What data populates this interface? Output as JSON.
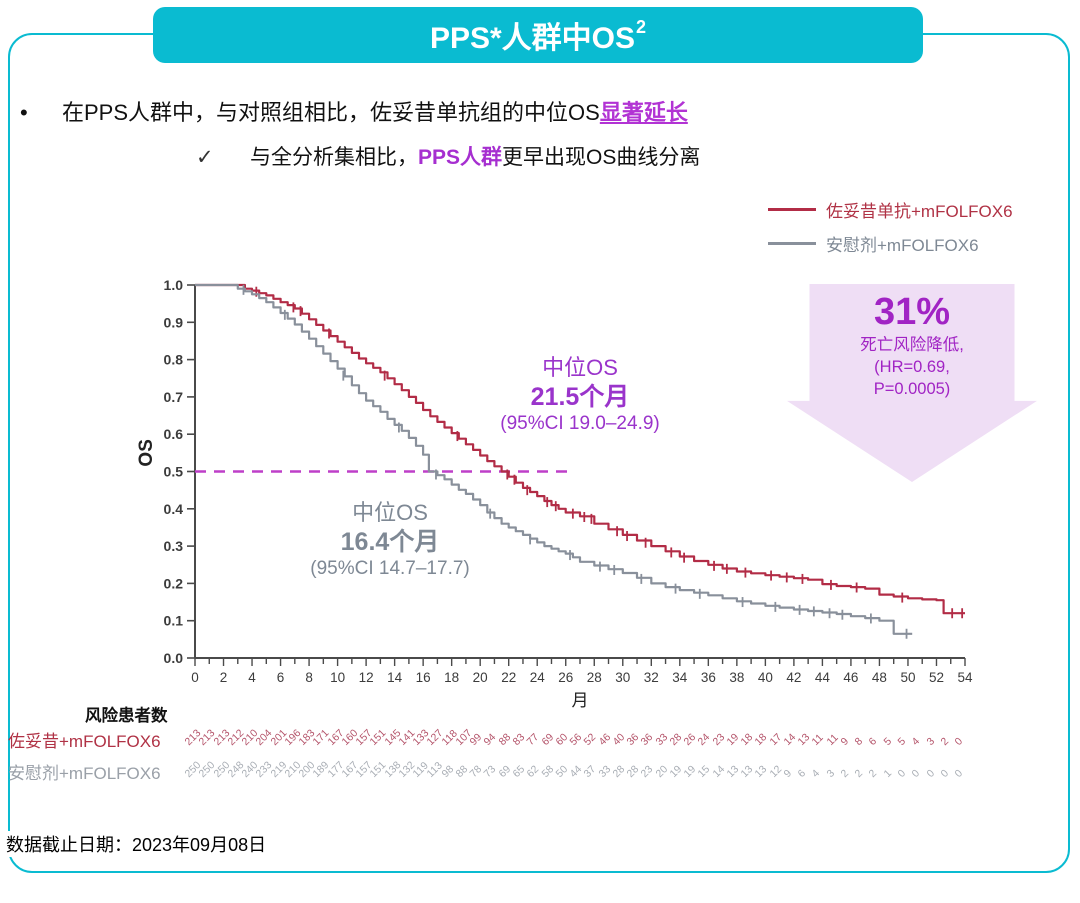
{
  "title": {
    "text": "PPS*人群中OS",
    "superscript": "2"
  },
  "bullets": {
    "line1_bullet": "•",
    "line1_prefix": "在PPS人群中，与对照组相比，佐妥昔单抗组的中位OS",
    "line1_highlight": "显著延长",
    "line2_check": "✓",
    "line2_prefix": "与全分析集相比，",
    "line2_highlight": "PPS人群",
    "line2_suffix": "更早出现OS曲线分离"
  },
  "legend": [
    {
      "label": "佐妥昔单抗+mFOLFOX6",
      "color": "#B22C46"
    },
    {
      "label": "安慰剂+mFOLFOX6",
      "color": "#89909B"
    }
  ],
  "annotations": {
    "zol": {
      "line1": "中位OS",
      "line2": "21.5个月",
      "line3": "(95%CI 19.0–24.9)",
      "color": "#9A34CB"
    },
    "pbo": {
      "line1": "中位OS",
      "line2": "16.4个月",
      "line3": "(95%CI 14.7–17.7)",
      "color": "#7E8894"
    }
  },
  "arrow": {
    "percent": "31%",
    "line1": "死亡风险降低,",
    "line2": "(HR=0.69,",
    "line3": "P=0.0005)",
    "fill": "#EFDEF5",
    "text_color": "#A124C4"
  },
  "footer": "数据截止日期：2023年09月08日",
  "colors": {
    "teal": "#0ABBD1",
    "curve_red": "#B22C46",
    "curve_gray": "#89909B",
    "magenta_highlight": "#B233D4",
    "purple_annotation": "#9A34CB",
    "dashed_median": "#BE3FC8",
    "risk_numbers_red": "#B5566C",
    "risk_numbers_gray": "#A9AEB5"
  },
  "chart_data": {
    "type": "line",
    "subtype": "kaplan-meier",
    "title": "",
    "xlabel": "月",
    "ylabel": "OS",
    "xlim": [
      0,
      54
    ],
    "ylim": [
      0,
      1
    ],
    "x_tick_step": 2,
    "x_minor_step": 1,
    "x_ticks": [
      0,
      2,
      4,
      6,
      8,
      10,
      12,
      14,
      16,
      18,
      20,
      22,
      24,
      26,
      28,
      30,
      32,
      34,
      36,
      38,
      40,
      42,
      44,
      46,
      48,
      50,
      52,
      54
    ],
    "y_ticks": [
      "1.0",
      "0.9",
      "0.8",
      "0.7",
      "0.6",
      "0.5",
      "0.4",
      "0.3",
      "0.2",
      "0.1",
      "0.0"
    ],
    "median_line": {
      "y": 0.5,
      "x_start": 0,
      "x_end": 26.2,
      "color": "#BE3FC8"
    },
    "hr": "0.69",
    "p_value": "0.0005",
    "risk_reduction_percent": 31,
    "series": [
      {
        "name": "佐妥昔单抗+mFOLFOX6",
        "color": "#B22C46",
        "median_months": 21.5,
        "ci95": "19.0–24.9",
        "points": [
          [
            0,
            1
          ],
          [
            3,
            1
          ],
          [
            3.5,
            0.99
          ],
          [
            4,
            0.985
          ],
          [
            4.5,
            0.978
          ],
          [
            5,
            0.972
          ],
          [
            5.5,
            0.963
          ],
          [
            6,
            0.954
          ],
          [
            6.5,
            0.946
          ],
          [
            7,
            0.937
          ],
          [
            7.5,
            0.923
          ],
          [
            8,
            0.908
          ],
          [
            8.5,
            0.893
          ],
          [
            9,
            0.878
          ],
          [
            9.5,
            0.863
          ],
          [
            10,
            0.848
          ],
          [
            10.5,
            0.833
          ],
          [
            11,
            0.818
          ],
          [
            11.5,
            0.803
          ],
          [
            12,
            0.79
          ],
          [
            12.5,
            0.778
          ],
          [
            13,
            0.766
          ],
          [
            13.5,
            0.75
          ],
          [
            14,
            0.734
          ],
          [
            14.5,
            0.718
          ],
          [
            15,
            0.7
          ],
          [
            15.5,
            0.684
          ],
          [
            16,
            0.665
          ],
          [
            16.5,
            0.648
          ],
          [
            17,
            0.633
          ],
          [
            17.5,
            0.618
          ],
          [
            18,
            0.603
          ],
          [
            18.5,
            0.588
          ],
          [
            19,
            0.573
          ],
          [
            19.5,
            0.558
          ],
          [
            20,
            0.543
          ],
          [
            20.5,
            0.528
          ],
          [
            21,
            0.514
          ],
          [
            21.5,
            0.5
          ],
          [
            22,
            0.486
          ],
          [
            22.5,
            0.47
          ],
          [
            23,
            0.456
          ],
          [
            23.5,
            0.445
          ],
          [
            24,
            0.434
          ],
          [
            24.5,
            0.421
          ],
          [
            25,
            0.41
          ],
          [
            25.5,
            0.4
          ],
          [
            26,
            0.39
          ],
          [
            27,
            0.38
          ],
          [
            28,
            0.36
          ],
          [
            29,
            0.345
          ],
          [
            30,
            0.33
          ],
          [
            31,
            0.315
          ],
          [
            32,
            0.3
          ],
          [
            33,
            0.286
          ],
          [
            34,
            0.272
          ],
          [
            35,
            0.26
          ],
          [
            36,
            0.25
          ],
          [
            37,
            0.24
          ],
          [
            38,
            0.232
          ],
          [
            39,
            0.227
          ],
          [
            40,
            0.222
          ],
          [
            41,
            0.218
          ],
          [
            42,
            0.214
          ],
          [
            43,
            0.21
          ],
          [
            44,
            0.198
          ],
          [
            45,
            0.193
          ],
          [
            46,
            0.19
          ],
          [
            47,
            0.186
          ],
          [
            48,
            0.17
          ],
          [
            49,
            0.165
          ],
          [
            50,
            0.16
          ],
          [
            51,
            0.157
          ],
          [
            52,
            0.155
          ],
          [
            52.5,
            0.12
          ],
          [
            54,
            0.12
          ]
        ],
        "censors": [
          [
            4.3,
            0.982
          ],
          [
            6.9,
            0.94
          ],
          [
            7.4,
            0.93
          ],
          [
            9.4,
            0.87
          ],
          [
            13.3,
            0.757
          ],
          [
            18.4,
            0.595
          ],
          [
            21.9,
            0.492
          ],
          [
            22.4,
            0.478
          ],
          [
            23.3,
            0.45
          ],
          [
            24.7,
            0.418
          ],
          [
            25.3,
            0.407
          ],
          [
            26.5,
            0.387
          ],
          [
            27.3,
            0.378
          ],
          [
            27.8,
            0.373
          ],
          [
            29.6,
            0.34
          ],
          [
            30.3,
            0.327
          ],
          [
            31.6,
            0.309
          ],
          [
            33.4,
            0.283
          ],
          [
            34.3,
            0.269
          ],
          [
            36.4,
            0.247
          ],
          [
            37.3,
            0.239
          ],
          [
            38.6,
            0.229
          ],
          [
            40.4,
            0.221
          ],
          [
            41.5,
            0.216
          ],
          [
            42.6,
            0.212
          ],
          [
            44.6,
            0.196
          ],
          [
            46.4,
            0.189
          ],
          [
            49.6,
            0.162
          ],
          [
            53.1,
            0.12
          ],
          [
            53.8,
            0.12
          ]
        ]
      },
      {
        "name": "安慰剂+mFOLFOX6",
        "color": "#89909B",
        "median_months": 16.4,
        "ci95": "14.7–17.7",
        "points": [
          [
            0,
            1
          ],
          [
            2.5,
            1
          ],
          [
            3,
            0.99
          ],
          [
            3.5,
            0.983
          ],
          [
            4,
            0.975
          ],
          [
            4.5,
            0.965
          ],
          [
            5,
            0.954
          ],
          [
            5.5,
            0.94
          ],
          [
            6,
            0.925
          ],
          [
            6.5,
            0.91
          ],
          [
            7,
            0.894
          ],
          [
            7.5,
            0.875
          ],
          [
            8,
            0.856
          ],
          [
            8.5,
            0.836
          ],
          [
            9,
            0.816
          ],
          [
            9.5,
            0.796
          ],
          [
            10,
            0.776
          ],
          [
            10.5,
            0.755
          ],
          [
            11,
            0.731
          ],
          [
            11.5,
            0.71
          ],
          [
            12,
            0.69
          ],
          [
            12.5,
            0.675
          ],
          [
            13,
            0.66
          ],
          [
            13.5,
            0.641
          ],
          [
            14,
            0.625
          ],
          [
            14.5,
            0.609
          ],
          [
            15,
            0.59
          ],
          [
            15.5,
            0.569
          ],
          [
            16,
            0.545
          ],
          [
            16.4,
            0.5
          ],
          [
            17,
            0.49
          ],
          [
            17.5,
            0.479
          ],
          [
            18,
            0.465
          ],
          [
            18.5,
            0.451
          ],
          [
            19,
            0.44
          ],
          [
            19.5,
            0.425
          ],
          [
            20,
            0.41
          ],
          [
            20.5,
            0.39
          ],
          [
            21,
            0.375
          ],
          [
            21.5,
            0.36
          ],
          [
            22,
            0.35
          ],
          [
            22.5,
            0.34
          ],
          [
            23,
            0.33
          ],
          [
            23.5,
            0.32
          ],
          [
            24,
            0.31
          ],
          [
            24.5,
            0.3
          ],
          [
            25,
            0.293
          ],
          [
            25.5,
            0.286
          ],
          [
            26,
            0.28
          ],
          [
            26.5,
            0.27
          ],
          [
            27,
            0.258
          ],
          [
            28,
            0.248
          ],
          [
            29,
            0.238
          ],
          [
            30,
            0.228
          ],
          [
            31,
            0.215
          ],
          [
            32,
            0.2
          ],
          [
            33,
            0.19
          ],
          [
            34,
            0.182
          ],
          [
            35,
            0.175
          ],
          [
            36,
            0.168
          ],
          [
            37,
            0.16
          ],
          [
            38,
            0.152
          ],
          [
            39,
            0.146
          ],
          [
            40,
            0.14
          ],
          [
            41,
            0.135
          ],
          [
            42,
            0.13
          ],
          [
            43,
            0.126
          ],
          [
            44,
            0.122
          ],
          [
            45,
            0.118
          ],
          [
            46,
            0.112
          ],
          [
            47,
            0.107
          ],
          [
            48,
            0.1
          ],
          [
            48.8,
            0.1
          ],
          [
            49,
            0.065
          ],
          [
            50.3,
            0.065
          ]
        ],
        "censors": [
          [
            3.4,
            0.987
          ],
          [
            6.3,
            0.92
          ],
          [
            10.4,
            0.757
          ],
          [
            14.3,
            0.618
          ],
          [
            16.9,
            0.492
          ],
          [
            20.7,
            0.387
          ],
          [
            23.5,
            0.318
          ],
          [
            26.3,
            0.276
          ],
          [
            28.4,
            0.245
          ],
          [
            29.4,
            0.236
          ],
          [
            31.3,
            0.212
          ],
          [
            33.7,
            0.186
          ],
          [
            35.4,
            0.172
          ],
          [
            38.4,
            0.15
          ],
          [
            40.7,
            0.137
          ],
          [
            42.4,
            0.129
          ],
          [
            43.4,
            0.125
          ],
          [
            44.5,
            0.12
          ],
          [
            45.4,
            0.116
          ],
          [
            47.4,
            0.106
          ],
          [
            49.9,
            0.065
          ]
        ]
      }
    ],
    "at_risk": {
      "header": "风险患者数",
      "month_step": 1,
      "rows": [
        {
          "label": "佐妥昔+mFOLFOX6",
          "color": "#B5566C",
          "values": [
            213,
            213,
            213,
            212,
            210,
            204,
            201,
            196,
            183,
            171,
            167,
            160,
            157,
            151,
            145,
            141,
            133,
            127,
            118,
            107,
            99,
            94,
            88,
            83,
            77,
            69,
            60,
            56,
            52,
            46,
            40,
            36,
            36,
            33,
            28,
            26,
            24,
            23,
            19,
            18,
            18,
            17,
            14,
            13,
            11,
            11,
            9,
            8,
            6,
            5,
            5,
            4,
            3,
            2,
            0
          ]
        },
        {
          "label": "安慰剂+mFOLFOX6",
          "color": "#A9AEB5",
          "values": [
            250,
            250,
            250,
            248,
            240,
            233,
            219,
            210,
            200,
            189,
            177,
            167,
            157,
            151,
            138,
            132,
            119,
            113,
            98,
            88,
            78,
            73,
            69,
            65,
            62,
            58,
            50,
            44,
            37,
            33,
            28,
            28,
            23,
            20,
            19,
            19,
            15,
            14,
            13,
            13,
            13,
            12,
            9,
            6,
            4,
            3,
            2,
            2,
            2,
            1,
            0,
            0,
            0,
            0,
            0
          ]
        }
      ]
    }
  }
}
